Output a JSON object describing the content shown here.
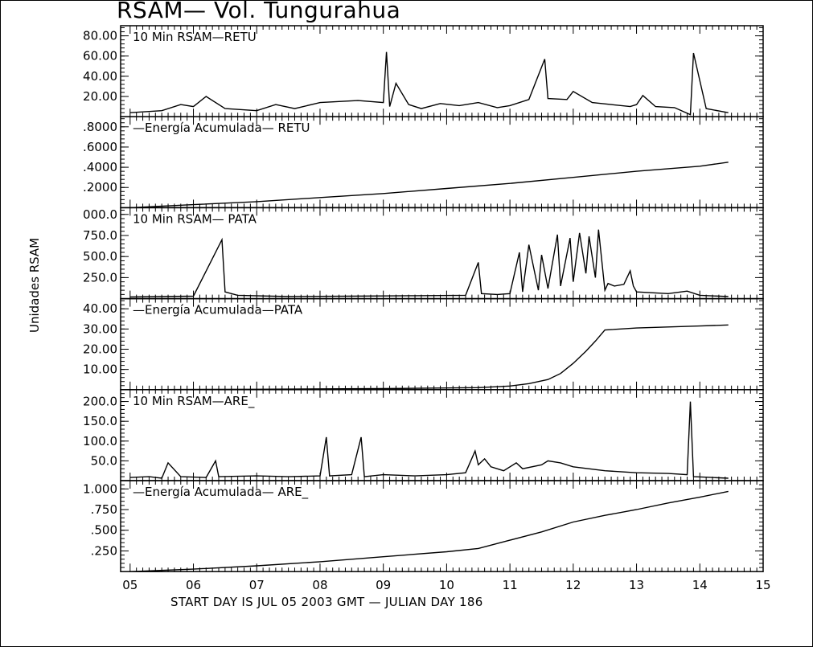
{
  "title": "RSAM— Vol. Tungurahua",
  "ylabel": "Unidades RSAM",
  "xlabel": "START DAY IS JUL 05 2003 GMT    — JULIAN DAY 186",
  "chart_data": [
    {
      "type": "line",
      "panel_label": "10 Min RSAM—RETU",
      "ylim": [
        0,
        90
      ],
      "yticks": [
        "80.00",
        "60.00",
        "40.00",
        "20.00"
      ],
      "ytick_values": [
        80,
        60,
        40,
        20
      ],
      "x": [
        5.0,
        5.5,
        5.8,
        6.0,
        6.2,
        6.5,
        7.0,
        7.3,
        7.6,
        8.0,
        8.3,
        8.6,
        9.0,
        9.05,
        9.1,
        9.2,
        9.4,
        9.6,
        9.9,
        10.2,
        10.5,
        10.8,
        11.0,
        11.3,
        11.55,
        11.6,
        11.9,
        12.0,
        12.3,
        12.6,
        12.9,
        13.0,
        13.1,
        13.3,
        13.6,
        13.85,
        13.9,
        14.1,
        14.45
      ],
      "values": [
        4,
        6,
        12,
        10,
        20,
        8,
        6,
        12,
        8,
        14,
        15,
        16,
        14,
        64,
        10,
        33,
        12,
        8,
        13,
        11,
        14,
        9,
        11,
        17,
        57,
        18,
        17,
        25,
        14,
        12,
        10,
        12,
        21,
        10,
        9,
        2,
        63,
        8,
        4
      ]
    },
    {
      "type": "line",
      "panel_label": "—Energía Acumulada— RETU",
      "ylim": [
        0,
        0.9
      ],
      "yticks": [
        ".8000",
        ".6000",
        ".4000",
        ".2000"
      ],
      "ytick_values": [
        0.8,
        0.6,
        0.4,
        0.2
      ],
      "x": [
        5.0,
        6.0,
        7.0,
        8.0,
        9.0,
        10.0,
        11.0,
        12.0,
        13.0,
        14.0,
        14.45
      ],
      "values": [
        0.0,
        0.03,
        0.06,
        0.1,
        0.14,
        0.19,
        0.24,
        0.3,
        0.36,
        0.41,
        0.45
      ]
    },
    {
      "type": "line",
      "panel_label": "10 Min RSAM— PATA",
      "ylim": [
        0,
        1080
      ],
      "yticks": [
        "000.0",
        "750.0",
        "500.0",
        "250.0"
      ],
      "ytick_values": [
        1000,
        750,
        500,
        250
      ],
      "x": [
        5.0,
        6.0,
        6.45,
        6.5,
        6.7,
        7.5,
        8.5,
        9.5,
        10.3,
        10.5,
        10.55,
        10.8,
        11.0,
        11.15,
        11.2,
        11.3,
        11.45,
        11.5,
        11.6,
        11.75,
        11.8,
        11.95,
        12.0,
        12.1,
        12.2,
        12.25,
        12.35,
        12.4,
        12.5,
        12.55,
        12.65,
        12.8,
        12.9,
        12.95,
        13.0,
        13.5,
        13.8,
        14.0,
        14.45
      ],
      "values": [
        20,
        30,
        700,
        80,
        40,
        25,
        30,
        35,
        40,
        430,
        60,
        50,
        60,
        550,
        80,
        640,
        100,
        520,
        120,
        760,
        150,
        720,
        200,
        780,
        300,
        740,
        250,
        820,
        100,
        180,
        150,
        170,
        330,
        150,
        80,
        60,
        90,
        40,
        25
      ]
    },
    {
      "type": "line",
      "panel_label": "—Energía Acumulada—PATA",
      "ylim": [
        0,
        45
      ],
      "yticks": [
        "40.00",
        "30.00",
        "20.00",
        "10.00"
      ],
      "ytick_values": [
        40,
        30,
        20,
        10
      ],
      "x": [
        5.0,
        7.0,
        9.0,
        10.5,
        11.0,
        11.3,
        11.6,
        11.8,
        12.0,
        12.2,
        12.35,
        12.5,
        13.0,
        13.5,
        14.0,
        14.45
      ],
      "values": [
        0.0,
        0.2,
        0.5,
        1.0,
        1.8,
        3.0,
        5.0,
        8.0,
        13.0,
        19.0,
        24.0,
        29.5,
        30.5,
        31.0,
        31.5,
        32.0
      ]
    },
    {
      "type": "line",
      "panel_label": "10 Min RSAM—ARE_",
      "ylim": [
        0,
        230
      ],
      "yticks": [
        "200.0",
        "150.0",
        "100.0",
        "50.0"
      ],
      "ytick_values": [
        200,
        150,
        100,
        50
      ],
      "x": [
        5.0,
        5.3,
        5.5,
        5.6,
        5.8,
        6.2,
        6.35,
        6.4,
        7.0,
        7.5,
        8.0,
        8.1,
        8.15,
        8.5,
        8.65,
        8.7,
        9.0,
        9.5,
        10.0,
        10.3,
        10.45,
        10.5,
        10.6,
        10.7,
        10.9,
        11.1,
        11.2,
        11.5,
        11.6,
        11.8,
        12.0,
        12.5,
        13.0,
        13.5,
        13.8,
        13.85,
        13.9,
        14.2,
        14.45
      ],
      "values": [
        8,
        10,
        6,
        45,
        10,
        8,
        50,
        10,
        12,
        10,
        12,
        110,
        12,
        15,
        110,
        10,
        15,
        12,
        15,
        20,
        75,
        40,
        55,
        35,
        25,
        45,
        30,
        40,
        50,
        45,
        35,
        25,
        20,
        18,
        15,
        200,
        10,
        8,
        6
      ]
    },
    {
      "type": "line",
      "panel_label": "—Energía Acumulada— ARE_",
      "ylim": [
        0,
        1.1
      ],
      "yticks": [
        "1.000",
        ".750",
        ".500",
        ".250"
      ],
      "ytick_values": [
        1.0,
        0.75,
        0.5,
        0.25
      ],
      "x": [
        5.0,
        6.0,
        7.0,
        8.0,
        9.0,
        10.0,
        10.5,
        11.0,
        11.5,
        12.0,
        12.5,
        13.0,
        13.5,
        14.0,
        14.45
      ],
      "values": [
        0.0,
        0.03,
        0.07,
        0.12,
        0.18,
        0.24,
        0.28,
        0.38,
        0.48,
        0.6,
        0.68,
        0.75,
        0.83,
        0.9,
        0.97
      ]
    }
  ],
  "x_axis": {
    "xlim": [
      4.85,
      15.0
    ],
    "ticks": [
      "05",
      "06",
      "07",
      "08",
      "09",
      "10",
      "11",
      "12",
      "13",
      "14",
      "15"
    ],
    "tick_values": [
      5,
      6,
      7,
      8,
      9,
      10,
      11,
      12,
      13,
      14,
      15
    ]
  }
}
